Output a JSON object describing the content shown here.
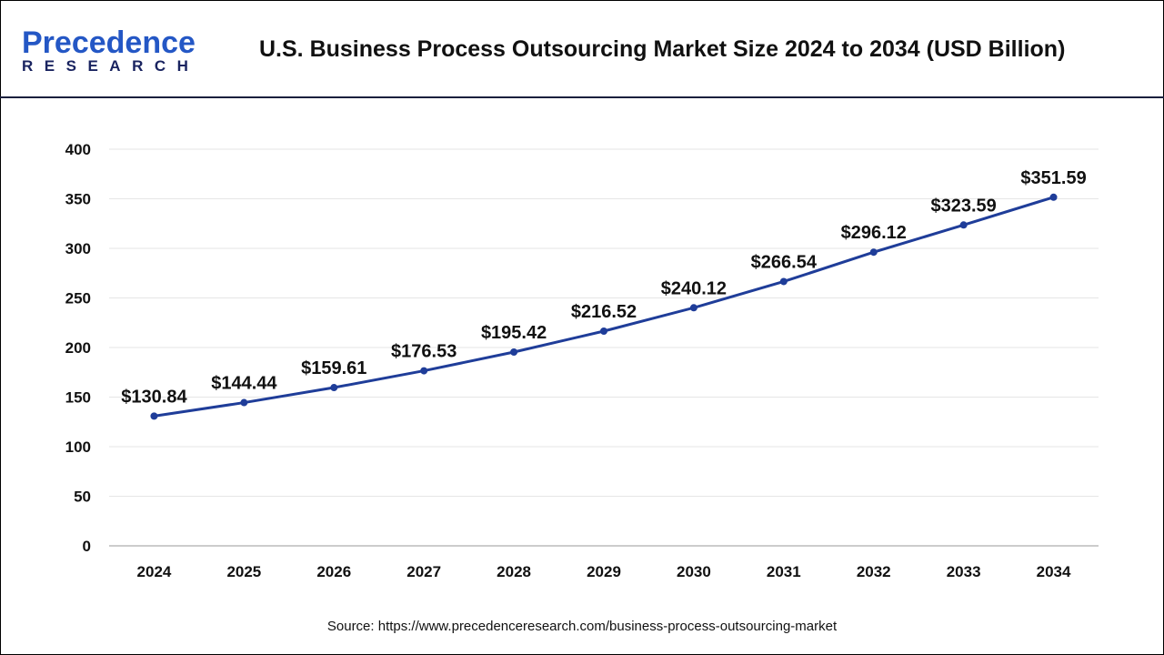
{
  "logo": {
    "line1": "Precedence",
    "line2": "RESEARCH"
  },
  "header": {
    "title": "U.S. Business Process Outsourcing Market Size 2024 to 2034 (USD Billion)"
  },
  "source": "Source: https://www.precedenceresearch.com/business-process-outsourcing-market",
  "chart_data": {
    "type": "line",
    "title": "U.S. Business Process Outsourcing Market Size 2024 to 2034 (USD Billion)",
    "categories": [
      "2024",
      "2025",
      "2026",
      "2027",
      "2028",
      "2029",
      "2030",
      "2031",
      "2032",
      "2033",
      "2034"
    ],
    "values": [
      130.84,
      144.44,
      159.61,
      176.53,
      195.42,
      216.52,
      240.12,
      266.54,
      296.12,
      323.59,
      351.59
    ],
    "data_labels": [
      "$130.84",
      "$144.44",
      "$159.61",
      "$176.53",
      "$195.42",
      "$216.52",
      "$240.12",
      "$266.54",
      "$296.12",
      "$323.59",
      "$351.59"
    ],
    "yticks": [
      0,
      50,
      100,
      150,
      200,
      250,
      300,
      350,
      400
    ],
    "ylim": [
      0,
      400
    ],
    "grid": true,
    "line_color": "#1f3d99"
  }
}
